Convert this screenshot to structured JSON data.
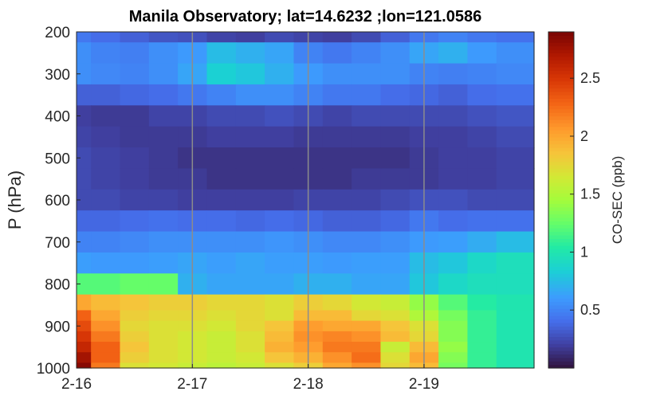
{
  "chart_data": {
    "type": "heatmap",
    "title": "Manila Observatory; lat=14.6232 ;lon=121.0586",
    "ylabel": "P (hPa)",
    "colorbar_label": "CO-SEC (ppb)",
    "colormap": "turbo",
    "clim": [
      0,
      2.9
    ],
    "x_ticks": [
      "2-16",
      "2-17",
      "2-18",
      "2-19"
    ],
    "x_range_days": [
      0,
      3.95
    ],
    "y_ticks": [
      200,
      300,
      400,
      500,
      600,
      700,
      800,
      900,
      1000
    ],
    "y_range": [
      200,
      1000
    ],
    "y_reversed": true,
    "colorbar_ticks": [
      0.5,
      1,
      1.5,
      2,
      2.5
    ],
    "vertical_gridlines_at": [
      "2-17",
      "2-18",
      "2-19"
    ],
    "pressure_levels": [
      200,
      250,
      300,
      350,
      400,
      450,
      500,
      550,
      600,
      650,
      700,
      750,
      800,
      850,
      875,
      900,
      925,
      950,
      975,
      1000
    ],
    "time_days": [
      0,
      0.25,
      0.5,
      0.75,
      1,
      1.25,
      1.5,
      1.75,
      2,
      2.25,
      2.5,
      2.75,
      3,
      3.25,
      3.5,
      3.75
    ],
    "values": [
      [
        0.45,
        0.4,
        0.35,
        0.3,
        0.28,
        0.22,
        0.2,
        0.25,
        0.22,
        0.2,
        0.25,
        0.35,
        0.45,
        0.5,
        0.45,
        0.42
      ],
      [
        0.55,
        0.5,
        0.48,
        0.55,
        0.6,
        0.75,
        0.7,
        0.65,
        0.5,
        0.45,
        0.5,
        0.55,
        0.65,
        0.7,
        0.6,
        0.55
      ],
      [
        0.55,
        0.52,
        0.5,
        0.55,
        0.65,
        0.85,
        0.8,
        0.7,
        0.6,
        0.55,
        0.55,
        0.55,
        0.5,
        0.48,
        0.5,
        0.52
      ],
      [
        0.35,
        0.35,
        0.38,
        0.4,
        0.45,
        0.5,
        0.55,
        0.55,
        0.5,
        0.45,
        0.45,
        0.4,
        0.38,
        0.35,
        0.4,
        0.42
      ],
      [
        0.2,
        0.18,
        0.18,
        0.22,
        0.22,
        0.25,
        0.25,
        0.28,
        0.25,
        0.22,
        0.25,
        0.25,
        0.25,
        0.25,
        0.28,
        0.3
      ],
      [
        0.22,
        0.2,
        0.18,
        0.18,
        0.18,
        0.2,
        0.2,
        0.2,
        0.18,
        0.18,
        0.18,
        0.18,
        0.2,
        0.2,
        0.22,
        0.25
      ],
      [
        0.25,
        0.22,
        0.2,
        0.18,
        0.15,
        0.15,
        0.15,
        0.15,
        0.15,
        0.15,
        0.15,
        0.15,
        0.18,
        0.2,
        0.2,
        0.22
      ],
      [
        0.25,
        0.22,
        0.2,
        0.18,
        0.18,
        0.15,
        0.15,
        0.15,
        0.15,
        0.15,
        0.18,
        0.18,
        0.18,
        0.2,
        0.2,
        0.22
      ],
      [
        0.25,
        0.25,
        0.22,
        0.22,
        0.2,
        0.2,
        0.2,
        0.2,
        0.22,
        0.22,
        0.22,
        0.25,
        0.28,
        0.28,
        0.25,
        0.25
      ],
      [
        0.38,
        0.38,
        0.4,
        0.42,
        0.4,
        0.4,
        0.38,
        0.4,
        0.38,
        0.35,
        0.35,
        0.38,
        0.45,
        0.4,
        0.42,
        0.42
      ],
      [
        0.5,
        0.5,
        0.52,
        0.55,
        0.55,
        0.55,
        0.55,
        0.58,
        0.55,
        0.52,
        0.52,
        0.55,
        0.6,
        0.62,
        0.68,
        0.75
      ],
      [
        0.62,
        0.6,
        0.6,
        0.62,
        0.65,
        0.62,
        0.65,
        0.62,
        0.62,
        0.6,
        0.62,
        0.62,
        0.75,
        0.8,
        0.9,
        0.95
      ],
      [
        1.2,
        1.2,
        1.25,
        1.25,
        0.7,
        0.65,
        0.65,
        0.65,
        0.7,
        0.7,
        0.65,
        0.65,
        0.8,
        0.9,
        0.95,
        0.95
      ],
      [
        2.0,
        1.9,
        1.85,
        1.8,
        1.8,
        1.75,
        1.75,
        1.7,
        1.8,
        1.75,
        1.65,
        1.6,
        1.4,
        1.2,
        1.05,
        1.0
      ],
      [
        2.3,
        2.0,
        1.8,
        1.75,
        1.75,
        1.7,
        1.75,
        1.7,
        1.9,
        1.9,
        1.75,
        1.7,
        1.5,
        1.3,
        1.1,
        1.0
      ],
      [
        2.4,
        2.1,
        1.75,
        1.7,
        1.7,
        1.65,
        1.75,
        1.85,
        2.05,
        2.0,
        2.0,
        1.85,
        1.7,
        1.35,
        1.1,
        1.0
      ],
      [
        2.5,
        2.2,
        1.8,
        1.7,
        1.65,
        1.6,
        1.7,
        1.9,
        2.1,
        2.15,
        2.1,
        1.9,
        1.75,
        1.35,
        1.1,
        1.0
      ],
      [
        2.6,
        2.3,
        1.85,
        1.7,
        1.65,
        1.6,
        1.7,
        1.95,
        2.05,
        2.2,
        2.2,
        1.6,
        1.9,
        1.4,
        1.1,
        1.0
      ],
      [
        2.75,
        2.3,
        1.8,
        1.7,
        1.65,
        1.6,
        1.65,
        1.85,
        1.95,
        2.1,
        2.25,
        1.7,
        2.0,
        1.35,
        1.1,
        1.0
      ],
      [
        2.85,
        2.2,
        1.7,
        1.65,
        1.6,
        1.55,
        1.6,
        1.7,
        1.8,
        2.0,
        2.1,
        1.75,
        1.9,
        1.3,
        1.1,
        1.0
      ]
    ]
  }
}
